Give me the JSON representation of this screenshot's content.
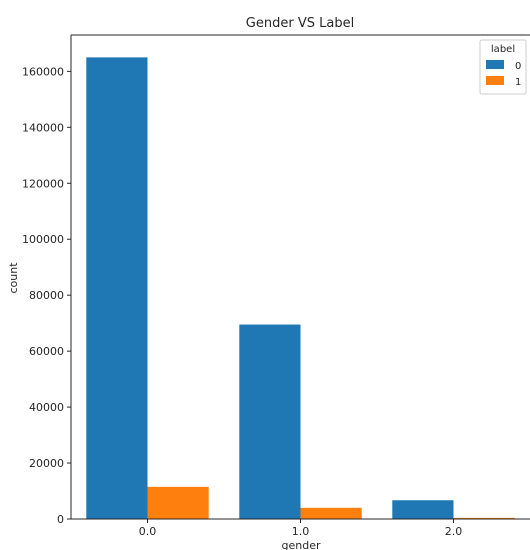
{
  "chart_data": {
    "type": "bar",
    "title": "Gender VS Label",
    "xlabel": "gender",
    "ylabel": "count",
    "categories": [
      "0.0",
      "1.0",
      "2.0"
    ],
    "series": [
      {
        "name": "0",
        "values": [
          165000,
          69500,
          6700
        ]
      },
      {
        "name": "1",
        "values": [
          11500,
          4000,
          400
        ]
      }
    ],
    "ylim": [
      0,
      173000
    ],
    "yticks": [
      0,
      20000,
      40000,
      60000,
      80000,
      100000,
      120000,
      140000,
      160000
    ],
    "legend": {
      "title": "label",
      "position": "top-right"
    },
    "grid": false,
    "colors": {
      "0": "#1f77b4",
      "1": "#ff7f0e"
    }
  }
}
